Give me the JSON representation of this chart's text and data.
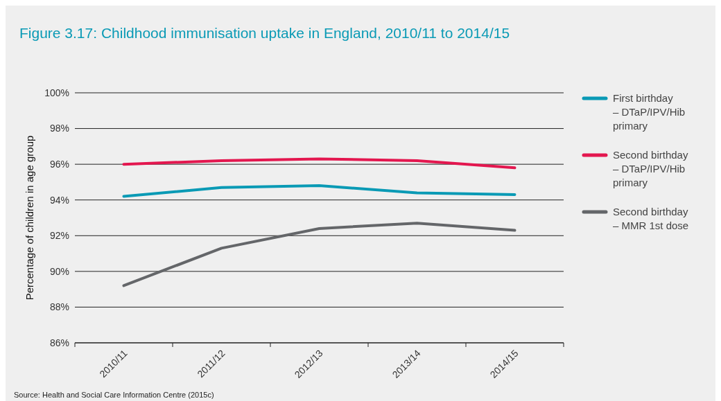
{
  "chart_data": {
    "type": "line",
    "title": "Figure 3.17: Childhood immunisation uptake in England, 2010/11 to 2014/15",
    "ylabel": "Percentage of children in age group",
    "categories": [
      "2010/11",
      "2011/12",
      "2012/13",
      "2013/14",
      "2014/15"
    ],
    "series": [
      {
        "name": "First birthday – DTaP/IPV/Hib primary",
        "color": "#0a9ab5",
        "values": [
          94.2,
          94.7,
          94.8,
          94.4,
          94.3
        ]
      },
      {
        "name": "Second birthday – DTaP/IPV/Hib primary",
        "color": "#e3174f",
        "values": [
          96.0,
          96.2,
          96.3,
          96.2,
          95.8
        ]
      },
      {
        "name": "Second birthday – MMR 1st dose",
        "color": "#646669",
        "values": [
          89.2,
          91.3,
          92.4,
          92.7,
          92.3
        ]
      }
    ],
    "ylim": [
      86,
      100
    ],
    "yticks": [
      {
        "value": 86,
        "label": "86%"
      },
      {
        "value": 88,
        "label": "88%"
      },
      {
        "value": 90,
        "label": "90%"
      },
      {
        "value": 92,
        "label": "92%"
      },
      {
        "value": 94,
        "label": "94%"
      },
      {
        "value": 96,
        "label": "96%"
      },
      {
        "value": 98,
        "label": "98%"
      },
      {
        "value": 100,
        "label": "100%"
      }
    ],
    "grid": "y",
    "legend": "right",
    "marker": "none",
    "line_style": "solid",
    "annotations": [
      "Source: Health and Social Care Information Centre (2015c)"
    ]
  }
}
